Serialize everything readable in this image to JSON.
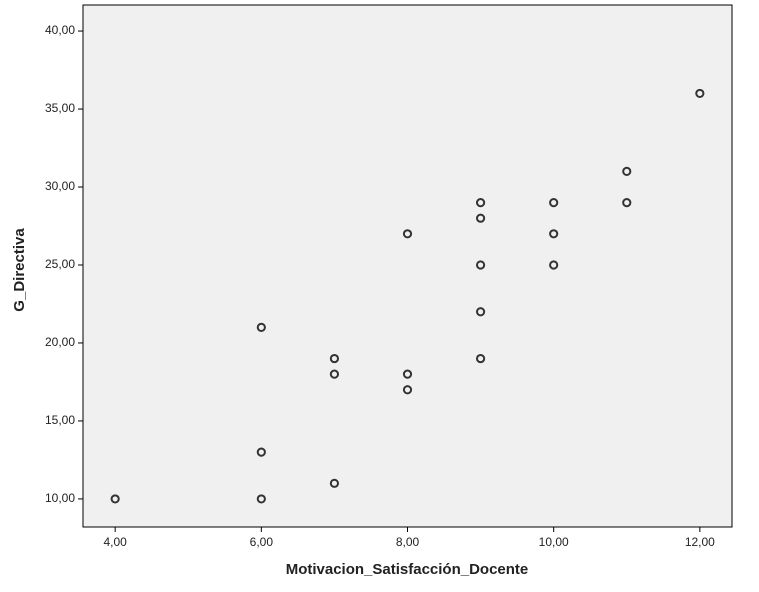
{
  "chart_data": {
    "type": "scatter",
    "x_label": "Motivacion_Satisfacción_Docente",
    "y_label": "G_Directiva",
    "x": [
      4,
      6,
      6,
      6,
      7,
      7,
      7,
      8,
      8,
      8,
      9,
      9,
      9,
      9,
      9,
      10,
      10,
      10,
      11,
      11,
      12
    ],
    "values": [
      10,
      21,
      13,
      10,
      19,
      18,
      11,
      27,
      18,
      17,
      29,
      28,
      25,
      22,
      19,
      29,
      27,
      25,
      31,
      29,
      36
    ],
    "color": "#333333",
    "background": "#f0f0f0",
    "xlim": [
      3.56,
      12.44
    ],
    "ylim": [
      8.2,
      41.67
    ],
    "xticks": [
      {
        "value": 4,
        "label": "4,00"
      },
      {
        "value": 6,
        "label": "6,00"
      },
      {
        "value": 8,
        "label": "8,00"
      },
      {
        "value": 10,
        "label": "10,00"
      },
      {
        "value": 12,
        "label": "12,00"
      }
    ],
    "yticks": [
      {
        "value": 10,
        "label": "10,00"
      },
      {
        "value": 15,
        "label": "15,00"
      },
      {
        "value": 20,
        "label": "20,00"
      },
      {
        "value": 25,
        "label": "25,00"
      },
      {
        "value": 30,
        "label": "30,00"
      },
      {
        "value": 35,
        "label": "35,00"
      },
      {
        "value": 40,
        "label": "40,00"
      }
    ],
    "grid": false
  }
}
